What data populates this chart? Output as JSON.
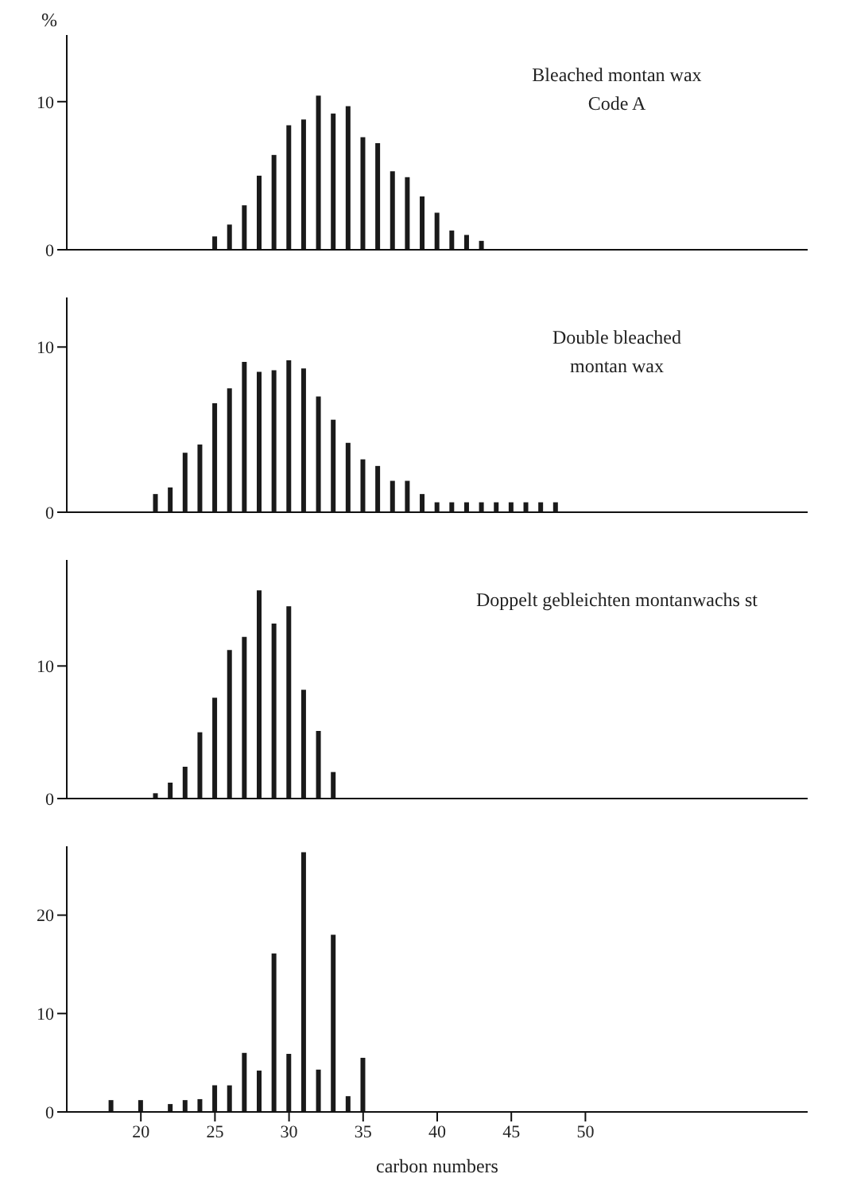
{
  "chart_data": [
    {
      "type": "bar",
      "ylabel": "%",
      "annotations": [
        "Bleached montan wax",
        "Code A"
      ],
      "x": [
        25,
        26,
        27,
        28,
        29,
        30,
        31,
        32,
        33,
        34,
        35,
        36,
        37,
        38,
        39,
        40,
        41,
        42,
        43
      ],
      "values": [
        0.9,
        1.7,
        3.0,
        5.0,
        6.4,
        8.4,
        8.8,
        10.4,
        9.2,
        9.7,
        7.6,
        7.2,
        5.3,
        4.9,
        3.6,
        2.5,
        1.3,
        1.0,
        0.6
      ],
      "color": "#1a1a1a",
      "xlim": [
        15,
        65
      ],
      "ylim": [
        0,
        14.5
      ],
      "yticks": [
        0,
        10
      ],
      "tick_labels": "y",
      "grid": false,
      "legend": false
    },
    {
      "type": "bar",
      "annotations": [
        "Double bleached",
        "montan wax"
      ],
      "x": [
        21,
        22,
        23,
        24,
        25,
        26,
        27,
        28,
        29,
        30,
        31,
        32,
        33,
        34,
        35,
        36,
        37,
        38,
        39,
        40,
        41,
        42,
        43,
        44,
        45,
        46,
        47,
        48
      ],
      "values": [
        1.1,
        1.5,
        3.6,
        4.1,
        6.6,
        7.5,
        9.1,
        8.5,
        8.6,
        9.2,
        8.7,
        7.0,
        5.6,
        4.2,
        3.2,
        2.8,
        1.9,
        1.9,
        1.1,
        0.6,
        0.6,
        0.6,
        0.6,
        0.6,
        0.6,
        0.6,
        0.6,
        0.6
      ],
      "color": "#1a1a1a",
      "xlim": [
        15,
        65
      ],
      "ylim": [
        0,
        13
      ],
      "yticks": [
        0,
        10
      ],
      "tick_labels": "y",
      "grid": false,
      "legend": false
    },
    {
      "type": "bar",
      "annotations": [
        "Doppelt gebleichten montanwachs st"
      ],
      "x": [
        21,
        22,
        23,
        24,
        25,
        26,
        27,
        28,
        29,
        30,
        31,
        32,
        33
      ],
      "values": [
        0.4,
        1.2,
        2.4,
        5.0,
        7.6,
        11.2,
        12.2,
        15.7,
        13.2,
        14.5,
        8.2,
        5.1,
        2.0
      ],
      "color": "#1a1a1a",
      "xlim": [
        15,
        65
      ],
      "ylim": [
        0,
        18
      ],
      "yticks": [
        0,
        10
      ],
      "tick_labels": "y",
      "grid": false,
      "legend": false
    },
    {
      "type": "bar",
      "xlabel": "carbon numbers",
      "x": [
        18,
        20,
        22,
        23,
        24,
        25,
        26,
        27,
        28,
        29,
        30,
        31,
        32,
        33,
        34,
        35
      ],
      "values": [
        1.2,
        1.2,
        0.8,
        1.2,
        1.3,
        2.7,
        2.7,
        6.0,
        4.2,
        16.1,
        5.9,
        26.4,
        4.3,
        18.0,
        1.6,
        5.5
      ],
      "color": "#1a1a1a",
      "xlim": [
        15,
        65
      ],
      "xticks": [
        20,
        25,
        30,
        35,
        40,
        45,
        50
      ],
      "ylim": [
        0,
        27
      ],
      "yticks": [
        0,
        10,
        20
      ],
      "grid": false,
      "legend": false
    }
  ]
}
